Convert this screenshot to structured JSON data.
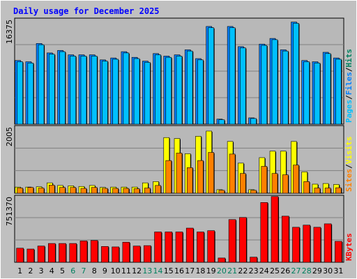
{
  "title": "Daily usage for December 2025",
  "colors": {
    "background": "#c0c0c0",
    "plot_bg": "#b8b8b8",
    "grid": "#7f7f7f",
    "title": "#0000ff",
    "hits": "#00805f",
    "files": "#0080ff",
    "pages": "#00c0ff",
    "visits": "#ffff00",
    "sites": "#ff8000",
    "kbytes": "#ff0000",
    "weekend": "#00805f",
    "weekday": "#000000"
  },
  "chart_data": [
    {
      "type": "bar",
      "panel": "hits-files-pages",
      "ymax_label": "16375",
      "ylim": [
        0,
        16375
      ],
      "legend": {
        "pages": "Pages",
        "files": "Files",
        "hits": "Hits",
        "sep": "/"
      },
      "categories": [
        "1",
        "2",
        "3",
        "4",
        "5",
        "6",
        "7",
        "8",
        "9",
        "10",
        "11",
        "12",
        "13",
        "14",
        "15",
        "16",
        "17",
        "18",
        "19",
        "20",
        "21",
        "22",
        "23",
        "24",
        "25",
        "26",
        "27",
        "28",
        "29",
        "30",
        "31"
      ],
      "series": [
        {
          "name": "Hits",
          "values": [
            10100,
            9900,
            12800,
            11300,
            11700,
            11000,
            11000,
            11000,
            10200,
            10500,
            11500,
            10600,
            10000,
            11200,
            10800,
            11000,
            11800,
            10400,
            15500,
            800,
            15500,
            12300,
            1000,
            12700,
            13600,
            11800,
            16200,
            10100,
            9900,
            11400,
            10500
          ]
        },
        {
          "name": "Files",
          "values": [
            9900,
            9700,
            12600,
            11100,
            11500,
            10800,
            10800,
            10800,
            10000,
            10300,
            11300,
            10400,
            9800,
            11000,
            10600,
            10800,
            11600,
            10200,
            15300,
            700,
            15300,
            12100,
            900,
            12500,
            13400,
            11600,
            16000,
            9900,
            9700,
            11200,
            10300
          ]
        }
      ]
    },
    {
      "type": "bar",
      "panel": "visits-sites",
      "ymax_label": "2005",
      "ylim": [
        0,
        2005
      ],
      "legend": {
        "sites": "Sites",
        "visits": "Visits",
        "sep": "/"
      },
      "categories": [
        "1",
        "2",
        "3",
        "4",
        "5",
        "6",
        "7",
        "8",
        "9",
        "10",
        "11",
        "12",
        "13",
        "14",
        "15",
        "16",
        "17",
        "18",
        "19",
        "20",
        "21",
        "22",
        "23",
        "24",
        "25",
        "26",
        "27",
        "28",
        "29",
        "30",
        "31"
      ],
      "series": [
        {
          "name": "Visits",
          "values": [
            190,
            190,
            200,
            320,
            240,
            230,
            210,
            240,
            180,
            190,
            190,
            190,
            320,
            360,
            1720,
            1690,
            1220,
            1760,
            1920,
            110,
            1600,
            930,
            110,
            1100,
            1300,
            1300,
            1600,
            660,
            280,
            300,
            270
          ]
        },
        {
          "name": "Sites",
          "values": [
            160,
            180,
            160,
            250,
            180,
            180,
            150,
            180,
            150,
            150,
            150,
            140,
            160,
            240,
            1010,
            1240,
            790,
            1010,
            1260,
            90,
            1210,
            610,
            90,
            830,
            610,
            570,
            870,
            360,
            160,
            160,
            170
          ]
        }
      ]
    },
    {
      "type": "bar",
      "panel": "kbytes",
      "ymax_label": "751370",
      "ylim": [
        0,
        751370
      ],
      "legend": {
        "kbytes": "KBytes"
      },
      "categories": [
        "1",
        "2",
        "3",
        "4",
        "5",
        "6",
        "7",
        "8",
        "9",
        "10",
        "11",
        "12",
        "13",
        "14",
        "15",
        "16",
        "17",
        "18",
        "19",
        "20",
        "21",
        "22",
        "23",
        "24",
        "25",
        "26",
        "27",
        "28",
        "29",
        "30",
        "31"
      ],
      "series": [
        {
          "name": "KBytes",
          "values": [
            165000,
            155000,
            190000,
            220000,
            220000,
            220000,
            250000,
            255000,
            185000,
            180000,
            235000,
            190000,
            195000,
            355000,
            355000,
            355000,
            400000,
            355000,
            370000,
            50000,
            500000,
            525000,
            60000,
            700000,
            770000,
            540000,
            410000,
            435000,
            410000,
            450000,
            245000
          ]
        }
      ]
    }
  ],
  "x_weekend_days": [
    "6",
    "7",
    "13",
    "14",
    "20",
    "21",
    "27",
    "28"
  ]
}
